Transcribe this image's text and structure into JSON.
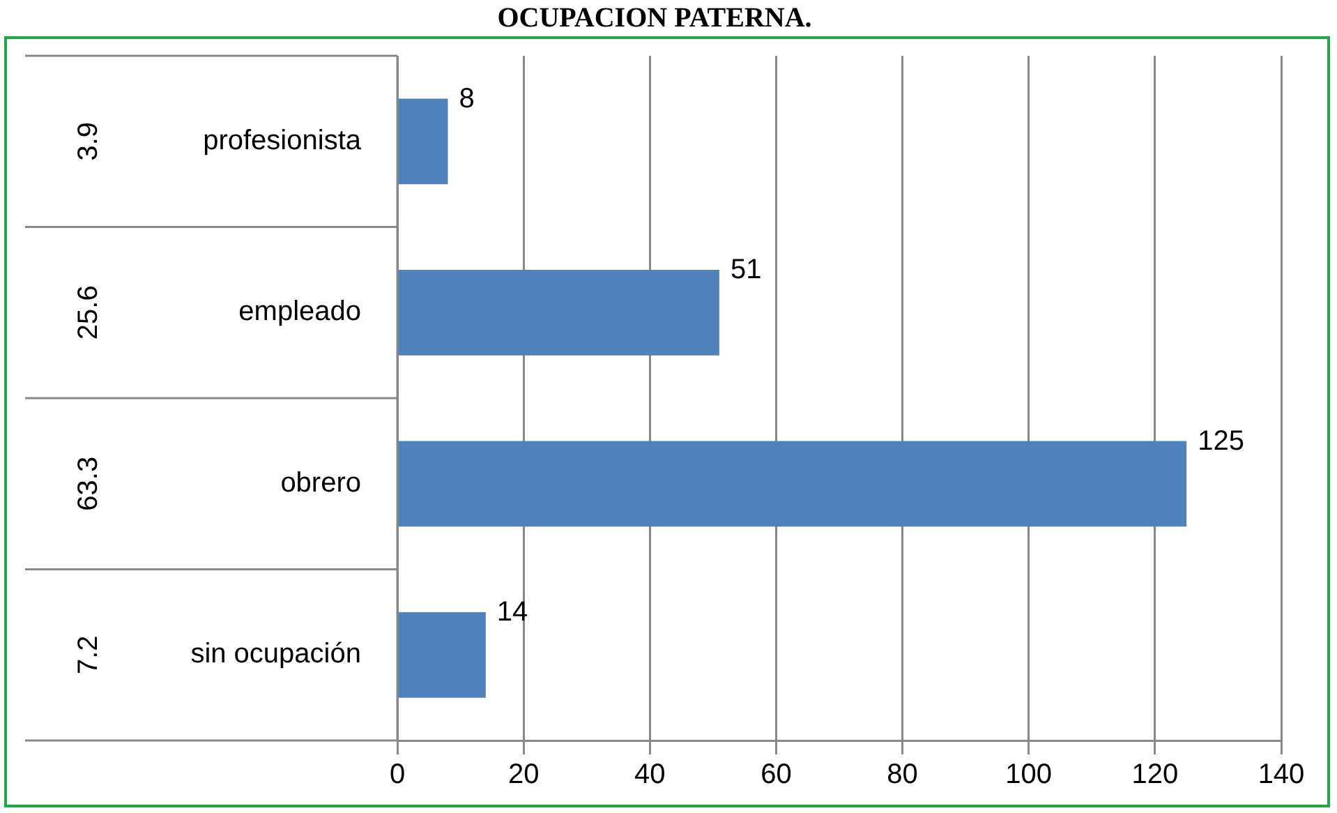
{
  "chart_data": {
    "type": "bar",
    "orientation": "horizontal",
    "title": "OCUPACION PATERNA.",
    "categories": [
      "profesionista",
      "empleado",
      "obrero",
      "sin ocupación"
    ],
    "values": [
      8,
      51,
      125,
      14
    ],
    "color": "#4f81bd",
    "data_labels": true,
    "xlim": [
      0,
      140
    ],
    "xticks": [
      0,
      20,
      40,
      60,
      80,
      100,
      120,
      140
    ],
    "grid": "x",
    "legend": false,
    "annotations": [
      "3.9",
      "25.6",
      "63.3",
      "7.2"
    ]
  }
}
